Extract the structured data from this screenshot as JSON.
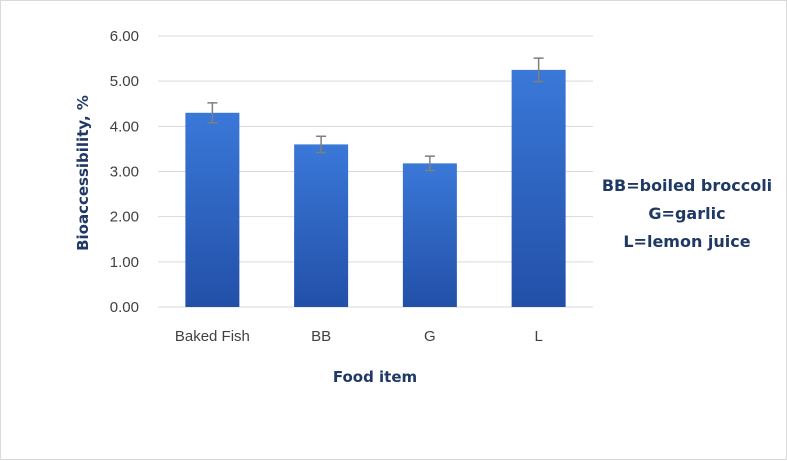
{
  "chart_data": {
    "type": "bar",
    "categories": [
      "Baked Fish",
      "BB",
      "G",
      "L"
    ],
    "values": [
      4.3,
      3.6,
      3.18,
      5.25
    ],
    "errors": [
      0.22,
      0.18,
      0.16,
      0.26
    ],
    "xlabel": "Food item",
    "ylabel": "Bioaccessibility, %",
    "ylim": [
      0,
      6
    ],
    "yticks": [
      "0.00",
      "1.00",
      "2.00",
      "3.00",
      "4.00",
      "5.00",
      "6.00"
    ],
    "grid": true,
    "legend": "none",
    "annotation": [
      "BB=boiled broccoli",
      "G=garlic",
      "L=lemon juice"
    ],
    "colors": {
      "bar_top": "#3a78d8",
      "bar_bottom": "#2250a8",
      "error_bar": "#7f7f7f",
      "grid": "#d9d9d9",
      "text": "#1f3864"
    }
  }
}
